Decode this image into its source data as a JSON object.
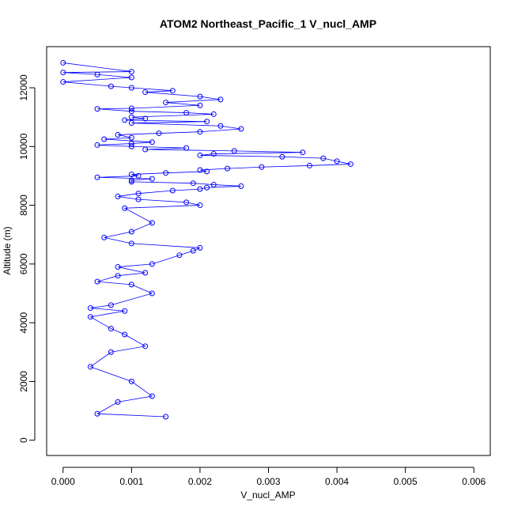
{
  "chart_data": {
    "type": "line",
    "title": "ATOM2 Northeast_Pacific_1 V_nucl_AMP",
    "xlabel": "V_nucl_AMP",
    "ylabel": "Altitude (m)",
    "xlim": [
      -0.00024,
      0.00624
    ],
    "ylim": [
      -520,
      13400
    ],
    "x_ticks": [
      0,
      0.001,
      0.002,
      0.003,
      0.004,
      0.005,
      0.006
    ],
    "x_tick_labels": [
      "0.000",
      "0.001",
      "0.002",
      "0.003",
      "0.004",
      "0.005",
      "0.006"
    ],
    "y_ticks": [
      0,
      2000,
      4000,
      6000,
      8000,
      10000,
      12000
    ],
    "y_tick_labels": [
      "0",
      "2000",
      "4000",
      "6000",
      "8000",
      "10000",
      "12000"
    ],
    "marker": "open-circle",
    "grid": false,
    "legend": "none",
    "color": "#0000ff",
    "series": [
      {
        "x": [
          0,
          0.001,
          0,
          0.0005,
          0.001,
          0,
          0.0007,
          0.001,
          0.0016,
          0.0012,
          0.002,
          0.0023,
          0.0015,
          0.002,
          0.001,
          0.0005,
          0.001,
          0.0018,
          0.0022,
          0.001,
          0.0012,
          0.0009,
          0.0021,
          0.001,
          0.0023,
          0.0026,
          0.002,
          0.0014,
          0.0008,
          0.001,
          0.0006,
          0.0013,
          0.001,
          0.0005,
          0.001,
          0.0018,
          0.0012,
          0.0025,
          0.0035,
          0.0022,
          0.002,
          0.0032,
          0.0038,
          0.004,
          0.0042,
          0.0036,
          0.0029,
          0.0024,
          0.002,
          0.0021,
          0.0015,
          0.001,
          0.0011,
          0.0005,
          0.0013,
          0.001,
          0.001,
          0.0019,
          0.0022,
          0.0026,
          0.0021,
          0.002,
          0.0016,
          0.0011,
          0.0008,
          0.0011,
          0.0018,
          0.002,
          0.0009,
          0.0013,
          0.001,
          0.0006,
          0.001,
          0.002,
          0.0019,
          0.0017,
          0.0013,
          0.0008,
          0.0012,
          0.0008,
          0.0005,
          0.001,
          0.0013,
          0.0007,
          0.0004,
          0.0009,
          0.0004,
          0.0007,
          0.0009,
          0.0012,
          0.0007,
          0.0004,
          0.001,
          0.0013,
          0.0008,
          0.0005,
          0.0015
        ],
        "y": [
          12850,
          12550,
          12520,
          12450,
          12350,
          12200,
          12050,
          12000,
          11900,
          11850,
          11700,
          11600,
          11500,
          11400,
          11300,
          11280,
          11200,
          11150,
          11100,
          11000,
          10950,
          10900,
          10850,
          10800,
          10700,
          10600,
          10500,
          10450,
          10400,
          10300,
          10250,
          10150,
          10100,
          10050,
          10000,
          9950,
          9900,
          9850,
          9800,
          9750,
          9700,
          9650,
          9600,
          9500,
          9400,
          9350,
          9300,
          9250,
          9200,
          9150,
          9100,
          9050,
          9000,
          8950,
          8900,
          8850,
          8800,
          8750,
          8700,
          8650,
          8600,
          8550,
          8500,
          8400,
          8300,
          8200,
          8100,
          8000,
          7900,
          7400,
          7100,
          6900,
          6700,
          6550,
          6450,
          6300,
          6000,
          5900,
          5700,
          5600,
          5400,
          5300,
          5000,
          4600,
          4500,
          4400,
          4200,
          3800,
          3600,
          3200,
          3000,
          2500,
          2000,
          1500,
          1300,
          900,
          800
        ]
      }
    ]
  }
}
